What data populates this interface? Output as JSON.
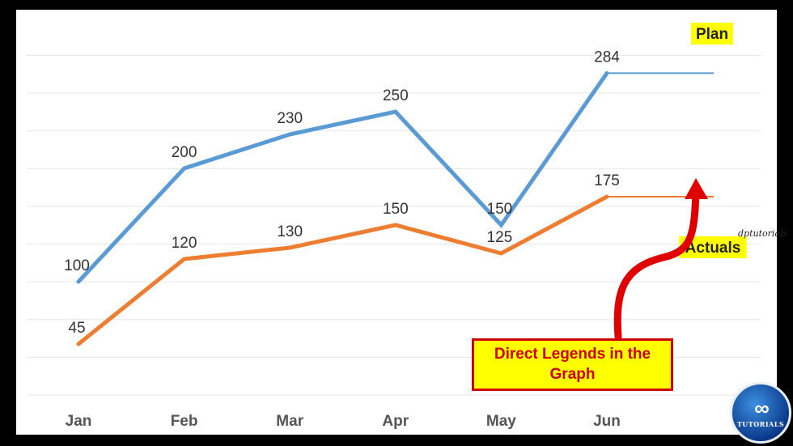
{
  "chart_data": {
    "type": "line",
    "categories": [
      "Jan",
      "Feb",
      "Mar",
      "Apr",
      "May",
      "Jun"
    ],
    "series": [
      {
        "name": "Plan",
        "values": [
          100,
          200,
          230,
          250,
          150,
          284
        ],
        "color": "#5b9bd5"
      },
      {
        "name": "Actuals",
        "values": [
          45,
          120,
          130,
          150,
          125,
          175
        ],
        "color": "#ed7d31"
      }
    ],
    "ylim": [
      0,
      300
    ],
    "grid": true,
    "legend": "direct labels at line ends, highlighted yellow"
  },
  "callout": {
    "text": "Direct Legends in the Graph",
    "color": "#d00000",
    "background": "#ffff00"
  },
  "watermark": "dptutorials",
  "logo": {
    "text": "TUTORIALS"
  },
  "colors": {
    "highlight": "#ffff00",
    "arrow": "#e00000",
    "grid": "#e6e6e6"
  }
}
